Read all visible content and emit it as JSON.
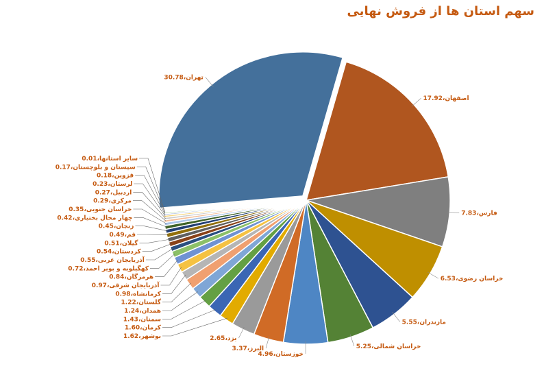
{
  "chart_data": {
    "type": "pie",
    "title": "سهم استان ها از فروش نهایی",
    "label_separator": "،",
    "categories": [
      "تهران",
      "اصفهان",
      "فارس",
      "خراسان رضوی",
      "مازندران",
      "خراسان شمالی",
      "خوزستان",
      "البرز",
      "یزد",
      "بوشهر",
      "کرمان",
      "سمنان",
      "همدان",
      "گلستان",
      "کرمانشاه",
      "آذربایجان شرقی",
      "هرمزگان",
      "کهگیلویه و بویر احمد",
      "آذربایجان غربی",
      "کردستان",
      "گیلان",
      "قم",
      "زنجان",
      "چهار محال بختیاری",
      "خراسان جنوبی",
      "مرکزی",
      "اردبیل",
      "لرستان",
      "قزوین",
      "سیستان و بلوچستان",
      "سایر استانها"
    ],
    "values": [
      30.78,
      17.92,
      7.83,
      6.53,
      5.55,
      5.25,
      4.96,
      3.37,
      2.65,
      1.62,
      1.6,
      1.43,
      1.24,
      1.22,
      0.98,
      0.97,
      0.84,
      0.72,
      0.55,
      0.54,
      0.51,
      0.49,
      0.45,
      0.42,
      0.35,
      0.29,
      0.27,
      0.23,
      0.18,
      0.17,
      0.01
    ],
    "value_labels": [
      "30.78",
      "17.92",
      "7.83",
      "6.53",
      "5.55",
      "5.25",
      "4.96",
      "3.37",
      "2.65",
      "1.62",
      "1.60",
      "1.43",
      "1.24",
      "1.22",
      "0.98",
      "0.97",
      "0.84",
      "0.72",
      "0.55",
      "0.54",
      "0.51",
      "0.49",
      "0.45",
      "0.42",
      "0.35",
      "0.29",
      "0.27",
      "0.23",
      "0.18",
      "0.17",
      "0.01"
    ],
    "colors": [
      "#44709b",
      "#b0561f",
      "#7f7f7f",
      "#bf8f00",
      "#2e5291",
      "#548235",
      "#4e86c4",
      "#d06b26",
      "#9a9a9a",
      "#e2ab00",
      "#3b66b4",
      "#64a043",
      "#7fa6d6",
      "#f0a070",
      "#b5b5b5",
      "#f5c242",
      "#6f92d2",
      "#8cc068",
      "#2a4f80",
      "#8a4218",
      "#606060",
      "#92700a",
      "#223f74",
      "#3f6328",
      "#a9c4e8",
      "#f5bf9a",
      "#cccccc",
      "#f8d680",
      "#a3b8e3",
      "#b3d89c",
      "#5f88c0"
    ]
  }
}
